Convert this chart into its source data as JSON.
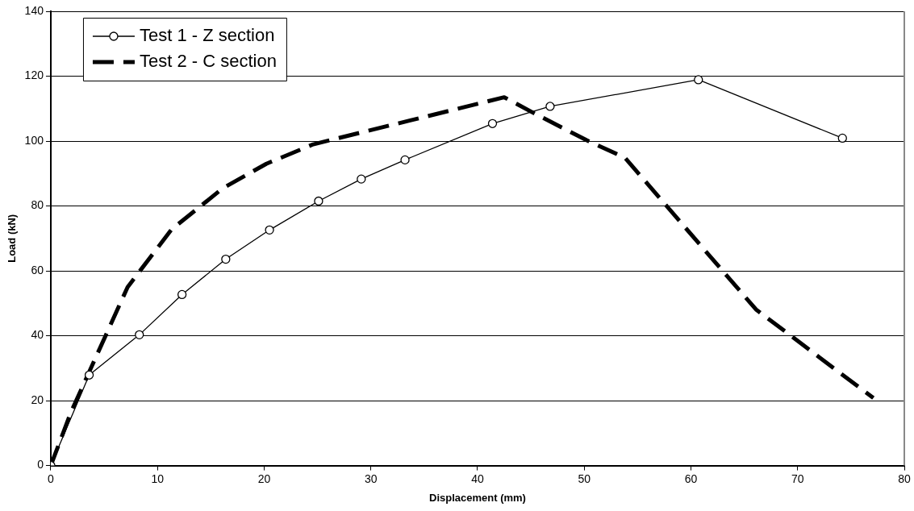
{
  "chart_data": {
    "type": "line",
    "xlabel": "Displacement (mm)",
    "ylabel": "Load (kN)",
    "xlim": [
      0,
      80
    ],
    "xticks": [
      0,
      10,
      20,
      30,
      40,
      50,
      60,
      70,
      80
    ],
    "ylim": [
      0,
      140
    ],
    "yticks": [
      0,
      20,
      40,
      60,
      80,
      100,
      120,
      140
    ],
    "grid": "y",
    "legend": "top left",
    "series": [
      {
        "name": "Test 1 - Z section",
        "color": "#000000",
        "marker": "circle",
        "line_style": "solid",
        "x": [
          0,
          3.6,
          8.3,
          12.3,
          16.4,
          20.5,
          25.1,
          29.1,
          33.2,
          41.4,
          46.8,
          60.7,
          74.2
        ],
        "values": [
          0,
          27.9,
          40.3,
          52.7,
          63.6,
          72.6,
          81.5,
          88.3,
          94.2,
          105.4,
          110.7,
          118.9,
          100.9
        ]
      },
      {
        "name": "Test 2 - C section",
        "color": "#000000",
        "marker": "none",
        "line_style": "dashed",
        "x": [
          0,
          1.9,
          7.2,
          11.3,
          16.1,
          20.2,
          24.6,
          42.5,
          45.4,
          50.2,
          53.8,
          66.1,
          77.1
        ],
        "values": [
          0,
          16.5,
          55,
          72.7,
          85.4,
          93,
          99,
          113.5,
          108.4,
          100.3,
          94.9,
          48.1,
          20.8
        ]
      }
    ]
  }
}
